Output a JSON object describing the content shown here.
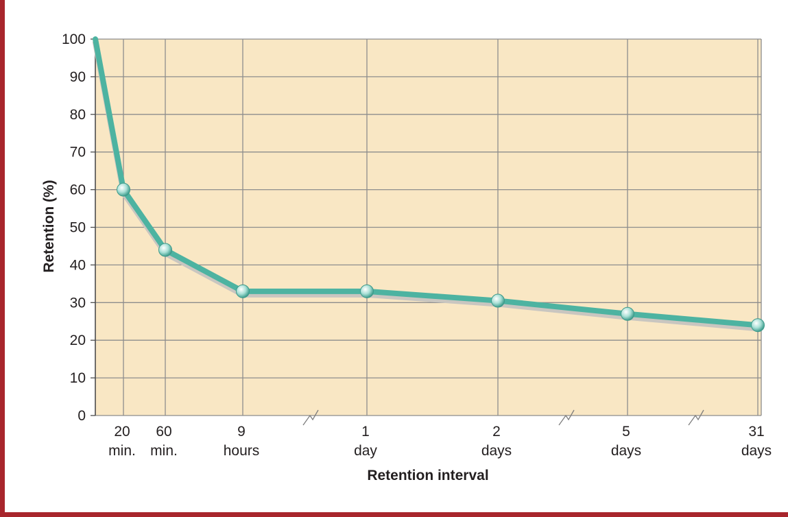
{
  "chart_data": {
    "type": "line",
    "title": "",
    "xlabel": "Retention interval",
    "ylabel": "Retention (%)",
    "ylim": [
      0,
      100
    ],
    "y_ticks": [
      "0",
      "10",
      "20",
      "30",
      "40",
      "50",
      "60",
      "70",
      "80",
      "90",
      "100"
    ],
    "x_ticks": [
      {
        "line1": "20",
        "line2": "min."
      },
      {
        "line1": "60",
        "line2": "min."
      },
      {
        "line1": "9",
        "line2": "hours"
      },
      {
        "line1": "1",
        "line2": "day"
      },
      {
        "line1": "2",
        "line2": "days"
      },
      {
        "line1": "5",
        "line2": "days"
      },
      {
        "line1": "31",
        "line2": "days"
      }
    ],
    "axis_breaks": "between 9 hours and 1 day, between 2 days and 5 days, between 5 days and 31 days",
    "grid": true,
    "colors": {
      "plot_background": "#f9e7c4",
      "grid": "#8d8d8d",
      "line": "#4db3a1",
      "shadow": "#c9c6c0",
      "frame_border": "#a8262c",
      "outer_background": "#cfe6e4"
    },
    "series": [
      {
        "values": [
          {
            "x": "0",
            "y": 100
          },
          {
            "x": "20 min.",
            "y": 60
          },
          {
            "x": "60 min.",
            "y": 44
          },
          {
            "x": "9 hours",
            "y": 33
          },
          {
            "x": "1 day",
            "y": 33
          },
          {
            "x": "2 days",
            "y": 30.5
          },
          {
            "x": "5 days",
            "y": 27
          },
          {
            "x": "31 days",
            "y": 24
          }
        ]
      }
    ]
  }
}
